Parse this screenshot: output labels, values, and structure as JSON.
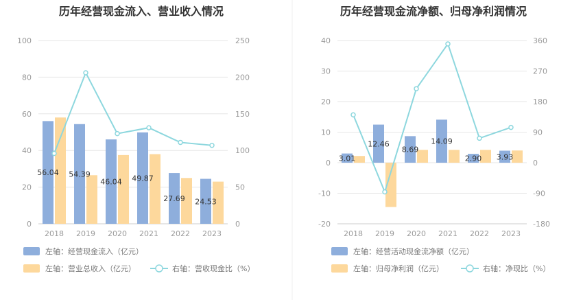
{
  "colors": {
    "bar_primary": "#8EAEDC",
    "bar_secondary": "#FDD89C",
    "line": "#8DD7DE",
    "grid": "#E6E6E6",
    "axis_text": "#999999"
  },
  "chart_data": [
    {
      "type": "bar",
      "title": "历年经营现金流入、营业收入情况",
      "categories": [
        "2018",
        "2019",
        "2020",
        "2021",
        "2022",
        "2023"
      ],
      "left_axis": {
        "ticks": [
          "0",
          "20",
          "40",
          "60",
          "80",
          "100"
        ],
        "ylim": [
          0,
          100
        ]
      },
      "right_axis": {
        "ticks": [
          "0",
          "50",
          "100",
          "150",
          "200",
          "250"
        ],
        "ylim": [
          0,
          250
        ]
      },
      "series": [
        {
          "name": "左轴：经营现金流入（亿元）",
          "type": "bar",
          "axis": "left",
          "values": [
            56.04,
            54.39,
            46.04,
            49.87,
            27.69,
            24.53
          ],
          "labels": [
            "56.04",
            "54.39",
            "46.04",
            "49.87",
            "27.69",
            "24.53"
          ]
        },
        {
          "name": "左轴：营业总收入（亿元）",
          "type": "bar",
          "axis": "left",
          "values": [
            58,
            26.5,
            37.5,
            38,
            25,
            23
          ]
        },
        {
          "name": "右轴：营收现金比（%）",
          "type": "line",
          "axis": "right",
          "values": [
            96,
            206,
            123,
            131,
            111,
            107
          ]
        }
      ],
      "grid": true,
      "legend": "bottom-left"
    },
    {
      "type": "bar",
      "title": "历年经营现金流净额、归母净利润情况",
      "categories": [
        "2018",
        "2019",
        "2020",
        "2021",
        "2022",
        "2023"
      ],
      "left_axis": {
        "ticks": [
          "-20",
          "-10",
          "0",
          "10",
          "20",
          "30",
          "40"
        ],
        "ylim": [
          -20,
          40
        ]
      },
      "right_axis": {
        "ticks": [
          "-180",
          "-90",
          "0",
          "90",
          "180",
          "270",
          "360"
        ],
        "ylim": [
          -180,
          360
        ]
      },
      "series": [
        {
          "name": "左轴：经营活动现金流净额（亿元）",
          "type": "bar",
          "axis": "left",
          "values": [
            3.01,
            12.46,
            8.69,
            14.09,
            2.9,
            3.93
          ],
          "labels": [
            "3.01",
            "12.46",
            "8.69",
            "14.09",
            "2.90",
            "3.93"
          ]
        },
        {
          "name": "左轴：归母净利润（亿元）",
          "type": "bar",
          "axis": "left",
          "values": [
            2.2,
            -14.5,
            4.2,
            4.2,
            4.2,
            4.0
          ]
        },
        {
          "name": "右轴：净现比（%）",
          "type": "line",
          "axis": "right",
          "values": [
            141,
            -86,
            218,
            350,
            72,
            104
          ]
        }
      ],
      "grid": true,
      "legend": "bottom-left"
    }
  ]
}
